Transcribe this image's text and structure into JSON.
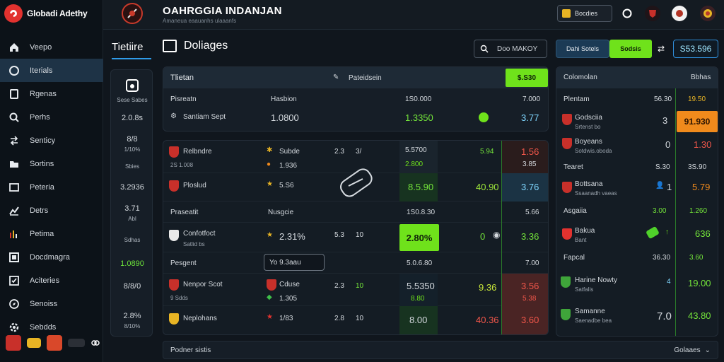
{
  "brand": {
    "name": "Globadi Adethy"
  },
  "sidebar": {
    "items": [
      {
        "label": "Veepo",
        "icon": "home-icon"
      },
      {
        "label": "Iterials",
        "icon": "target-icon"
      },
      {
        "label": "Rgenas",
        "icon": "square-icon"
      },
      {
        "label": "Perhs",
        "icon": "search-icon"
      },
      {
        "label": "Senticy",
        "icon": "arrows-icon"
      },
      {
        "label": "Sortins",
        "icon": "folder-icon"
      },
      {
        "label": "Peteria",
        "icon": "box-icon"
      },
      {
        "label": "Detrs",
        "icon": "chart-icon"
      },
      {
        "label": "Petima",
        "icon": "bars-icon"
      },
      {
        "label": "Docdmagra",
        "icon": "frame-icon"
      },
      {
        "label": "Aciteries",
        "icon": "check-square-icon"
      },
      {
        "label": "Senoiss",
        "icon": "compass-icon"
      },
      {
        "label": "Sebdds",
        "icon": "settings-icon"
      }
    ],
    "active_index": 1
  },
  "header": {
    "title": "OAHRGGIA INDANJAN",
    "subtitle": "Amaneua eaauanhs ulaaanfs",
    "button_label": "Bocdies"
  },
  "left_tab": {
    "label": "Tietiire"
  },
  "section": {
    "title": "Doliages"
  },
  "search": {
    "value": "Doo MAKOY"
  },
  "chips": {
    "a": "Dahi Sotels",
    "b": "Sodsis",
    "c": "S53.596"
  },
  "stats": {
    "s1": "Sese Sabes",
    "s2": "2.0.8s",
    "s3": "8/8",
    "s4": "1/10%",
    "s5": "Sbies",
    "s6": "3.2936",
    "s7": "3.71",
    "s8": "Abl",
    "s9": "Sdhas",
    "s10": "1.0890",
    "s11": "8/8/0",
    "s12": "2.8%",
    "s13": "8/10%"
  },
  "main": {
    "header_left": "Tlietan",
    "header_mid": "Pateidsein",
    "header_btn": "$.S30",
    "sub_left": "Pisreatn",
    "sub_mid": "Hasbion",
    "sub_right1": "1S0.000",
    "sub_right2": "7.000",
    "row_team": "Santiam Sept",
    "row_val": "1.0800",
    "row_green": "1.3350",
    "row_cyan": "3.77"
  },
  "matches": [
    {
      "team": "Relbndre",
      "sub": "2S  1.008",
      "mid": "Subde",
      "mid2": "1.936",
      "s1": "2.3",
      "s2": "3/",
      "c1": "5.5700",
      "c1b": "2.800",
      "c2": "5.94",
      "c3": "1.56",
      "c3b": "3.85"
    },
    {
      "team": "Ploslud",
      "mid": "5.S6",
      "c1": "8.5.90",
      "c2": "40.90",
      "c3": "3.76"
    },
    {
      "team": "Praseatit",
      "mid": "Nusgcie",
      "c1": "1S0.8.30",
      "c3": "5.66"
    },
    {
      "team": "Confotfoct",
      "sub": "Satlid bs",
      "mid": "2.31%",
      "s1": "5.3",
      "s2": "10",
      "c1": "2.80%",
      "c2": "0",
      "c3": "3.36"
    },
    {
      "team": "Pesgent",
      "mid": "Yo 9.3aau",
      "c1": "5.0.6.80",
      "c3": "7.00"
    },
    {
      "team": "Nenpor Scot",
      "sub": "9  Sdds",
      "mid": "Cduse",
      "mid2": "1.305",
      "s1": "2.3",
      "s2": "10",
      "c1": "5.5350",
      "c1b": "8.80",
      "c2": "9.36",
      "c3": "3.56",
      "c3b": "5.38"
    },
    {
      "team": "Neplohans",
      "mid": "1/83",
      "s1": "2.8",
      "s2": "10",
      "c1": "8.00",
      "c2": "40.36",
      "c3": "3.60"
    }
  ],
  "right": {
    "header_left": "Colomolan",
    "header_right": "Bbhas",
    "rows": [
      {
        "name": "Plentam",
        "v1": "56.30",
        "v2": "19.50"
      },
      {
        "name": "Godsciia",
        "sub": "Srtenst bo",
        "v1": "3",
        "v2": "91.930"
      },
      {
        "name": "Boyeans",
        "sub": "Sotdwis.oboda",
        "v1": "0",
        "v2": "1.30"
      },
      {
        "name": "Tearet",
        "v1": "S.30",
        "v2": "3S.90"
      },
      {
        "name": "Bottsana",
        "sub": "Ssaanadh vaeas",
        "v1": "1",
        "v2": "5.79"
      },
      {
        "name": "Asgaiia",
        "v1": "3.00",
        "v2": "1.260"
      },
      {
        "name": "Bakua",
        "sub": "Bant",
        "v2": "636"
      },
      {
        "name": "Fapcal",
        "v1": "36.30",
        "v2": "3.60"
      },
      {
        "name": "Harine Nowty",
        "sub": "Satfalis",
        "v1": "4",
        "v2": "19.00"
      },
      {
        "name": "Samanne",
        "sub": "Saenadbe bea",
        "v1": "7.0",
        "v2": "43.80"
      }
    ]
  },
  "bottom": {
    "left": "Podner sistis",
    "right": "Golaaes"
  },
  "colors": {
    "accent_green": "#6fe21b",
    "accent_red": "#e2322f",
    "accent_blue": "#2f9be8",
    "accent_orange": "#f08a1c"
  }
}
